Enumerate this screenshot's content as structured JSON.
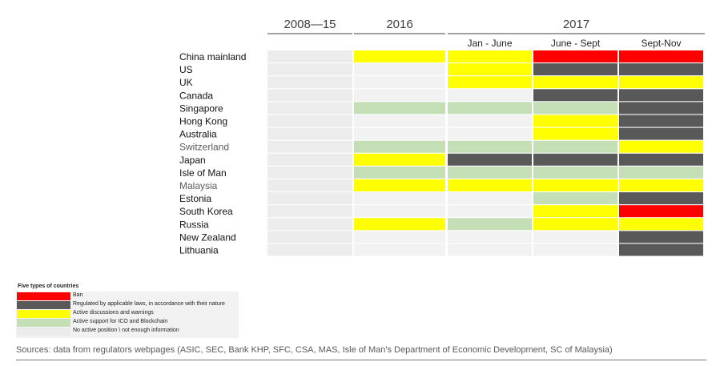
{
  "chart_data": {
    "type": "heatmap",
    "period_groups": [
      {
        "label": "2008—15",
        "columns": [
          0
        ]
      },
      {
        "label": "2016",
        "columns": [
          1
        ]
      },
      {
        "label": "2017",
        "columns": [
          2,
          3,
          4
        ]
      }
    ],
    "columns": [
      "2008—15",
      "2016",
      "Jan - June",
      "June - Sept",
      "Sept-Nov"
    ],
    "column_sublabels": [
      "",
      "",
      "Jan - June",
      "June - Sept",
      "Sept-Nov"
    ],
    "rows": [
      {
        "country": "China mainland",
        "values": [
          "none",
          "discuss",
          "discuss",
          "ban",
          "ban"
        ]
      },
      {
        "country": "US",
        "values": [
          "none",
          "none",
          "discuss",
          "regulated",
          "regulated"
        ]
      },
      {
        "country": "UK",
        "values": [
          "none",
          "none",
          "discuss",
          "discuss",
          "discuss"
        ]
      },
      {
        "country": "Canada",
        "values": [
          "none",
          "none",
          "none",
          "regulated",
          "regulated"
        ]
      },
      {
        "country": "Singapore",
        "values": [
          "none",
          "support",
          "support",
          "support",
          "regulated"
        ]
      },
      {
        "country": "Hong Kong",
        "values": [
          "none",
          "none",
          "none",
          "discuss",
          "regulated"
        ]
      },
      {
        "country": "Australia",
        "values": [
          "none",
          "none",
          "none",
          "discuss",
          "regulated"
        ]
      },
      {
        "country": "Switzerland",
        "values": [
          "none",
          "support",
          "support",
          "support",
          "discuss"
        ]
      },
      {
        "country": "Japan",
        "values": [
          "none",
          "discuss",
          "regulated",
          "regulated",
          "regulated"
        ]
      },
      {
        "country": "Isle of Man",
        "values": [
          "none",
          "support",
          "support",
          "support",
          "support"
        ]
      },
      {
        "country": "Malaysia",
        "values": [
          "none",
          "discuss",
          "discuss",
          "discuss",
          "discuss"
        ]
      },
      {
        "country": "Estonia",
        "values": [
          "none",
          "none",
          "none",
          "support",
          "regulated"
        ]
      },
      {
        "country": "South Korea",
        "values": [
          "none",
          "none",
          "none",
          "discuss",
          "ban"
        ]
      },
      {
        "country": "Russia",
        "values": [
          "none",
          "discuss",
          "support",
          "discuss",
          "discuss"
        ]
      },
      {
        "country": "New Zealand",
        "values": [
          "none",
          "none",
          "none",
          "none",
          "regulated"
        ]
      },
      {
        "country": "Lithuania",
        "values": [
          "none",
          "none",
          "none",
          "none",
          "regulated"
        ]
      }
    ],
    "legend_title": "Five types of  countries",
    "categories": [
      {
        "key": "ban",
        "label": "Ban",
        "color": "#ff0000"
      },
      {
        "key": "regulated",
        "label": "Regulated by applicable laws, in accordance with their nature",
        "color": "#595959"
      },
      {
        "key": "discuss",
        "label": "Active discussions and warnings",
        "color": "#ffff00"
      },
      {
        "key": "support",
        "label": "Active support for ICO and Blockchain",
        "color": "#c4dfb5"
      },
      {
        "key": "none",
        "label": "No active position \\ not enough information",
        "color": "#f2f2f2"
      }
    ]
  },
  "sources": "Sources: data from regulators webpages (ASIC, SEC, Bank KHP, SFC, CSA, MAS, Isle of Man's Department of Economic Development, SC of Malaysia)"
}
